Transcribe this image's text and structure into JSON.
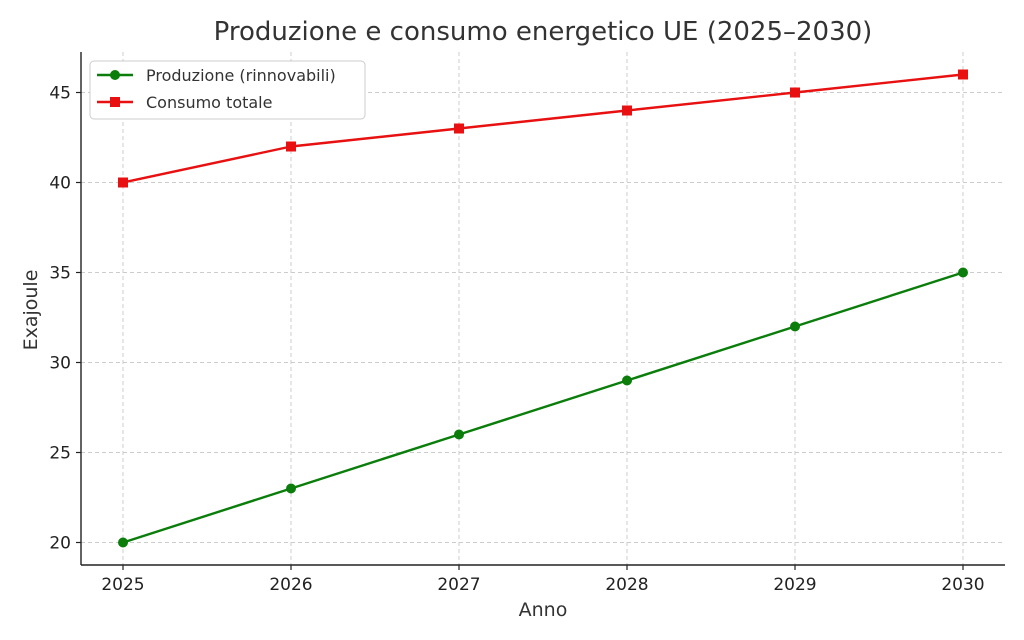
{
  "chart_data": {
    "type": "line",
    "title": "Produzione e consumo energetico UE (2025–2030)",
    "xlabel": "Anno",
    "ylabel": "Exajoule",
    "x": [
      2025,
      2026,
      2027,
      2028,
      2029,
      2030
    ],
    "x_tick_labels": [
      "2025",
      "2026",
      "2027",
      "2028",
      "2029",
      "2030"
    ],
    "y_ticks": [
      20,
      25,
      30,
      35,
      40,
      45
    ],
    "y_tick_labels": [
      "20",
      "25",
      "30",
      "35",
      "40",
      "45"
    ],
    "xlim": [
      2024.75,
      2030.25
    ],
    "ylim": [
      18.75,
      47.25
    ],
    "grid": true,
    "legend_position": "top-left",
    "series": [
      {
        "name": "Produzione (rinnovabili)",
        "values": [
          20,
          23,
          26,
          29,
          32,
          35
        ],
        "color": "#0a7d0a",
        "marker": "circle"
      },
      {
        "name": "Consumo totale",
        "values": [
          40,
          42,
          43,
          44,
          45,
          46
        ],
        "color": "#e81010",
        "marker": "square"
      }
    ]
  }
}
